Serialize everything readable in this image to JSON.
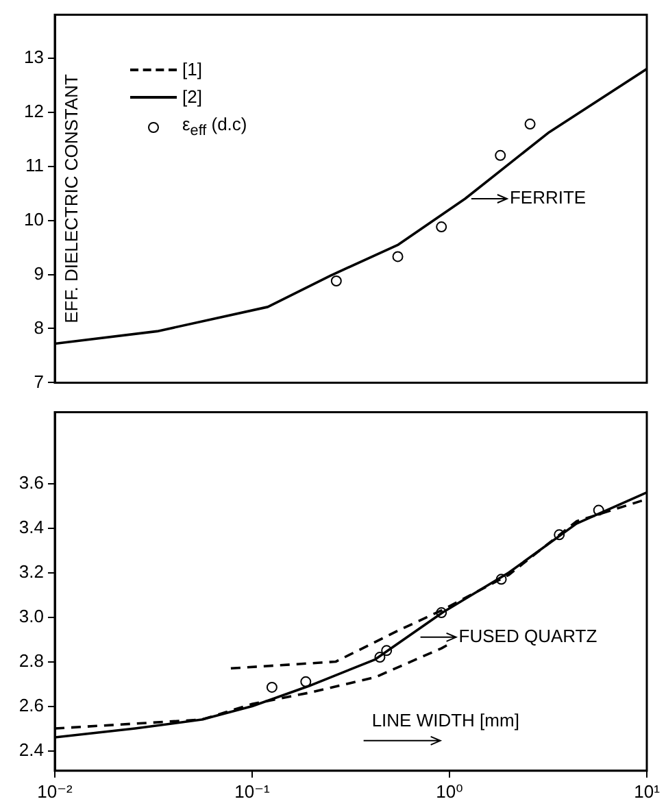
{
  "chart_data": [
    {
      "type": "line",
      "ylabel": "EFF. DIELECTRIC CONSTANT",
      "log": "x",
      "xlim": [
        0.01,
        10
      ],
      "ylim": [
        7,
        13.8
      ],
      "yticks": [
        7,
        8,
        9,
        10,
        11,
        12,
        13
      ],
      "tick_labels": "y",
      "legend": "top left",
      "annotations": [
        {
          "text": "FERRITE",
          "x": 1.25,
          "y": 10.4
        }
      ],
      "series": [
        {
          "name": "[1]",
          "line_style": "dashed",
          "marker": "none",
          "color": "#000000"
        },
        {
          "name": "[2]",
          "line_style": "solid",
          "marker": "none",
          "color": "#000000",
          "x": [
            0.01,
            0.033,
            0.12,
            0.25,
            0.55,
            1.2,
            3.2,
            10
          ],
          "values": [
            7.72,
            7.95,
            8.4,
            8.98,
            9.55,
            10.4,
            11.63,
            12.8
          ]
        },
        {
          "name": "ε$_{eff}$ (d.c)",
          "type": "scatter",
          "marker": "circle",
          "color": "#000000",
          "x": [
            0.267,
            0.547,
            0.91,
            1.81,
            2.56
          ],
          "values": [
            8.88,
            9.33,
            9.88,
            11.2,
            11.78
          ]
        }
      ]
    },
    {
      "type": "line",
      "xlabel": "LINE WIDTH [mm]",
      "log": "x",
      "xlim": [
        0.01,
        10
      ],
      "xticks": [
        {
          "value": 0.01,
          "label": "10⁻²"
        },
        {
          "value": 0.1,
          "label": "10⁻¹"
        },
        {
          "value": 1,
          "label": "10⁰"
        },
        {
          "value": 10,
          "label": "10¹"
        }
      ],
      "ylim": [
        2.31,
        3.92
      ],
      "yticks": [
        2.4,
        2.6,
        2.8,
        {
          "value": 3,
          "label": "3.0"
        },
        3.2,
        3.4,
        3.6
      ],
      "annotations": [
        {
          "text": "FUSED QUARTZ",
          "x": 0.69,
          "y": 2.91
        }
      ],
      "series": [
        {
          "line_style": "dashed",
          "marker": "none",
          "color": "#000000",
          "x": [
            0.078,
            0.265,
            0.55,
            0.91,
            2.0,
            4.4,
            10
          ],
          "values": [
            2.77,
            2.8,
            2.94,
            3.03,
            3.19,
            3.43,
            3.53
          ]
        },
        {
          "line_style": "dashed",
          "marker": "none",
          "color": "#000000",
          "x": [
            0.01,
            0.0556,
            0.1,
            0.193,
            0.42,
            0.91,
            1.0
          ],
          "values": [
            2.5,
            2.54,
            2.61,
            2.66,
            2.73,
            2.86,
            2.88
          ]
        },
        {
          "line_style": "solid",
          "marker": "none",
          "color": "#000000",
          "x": [
            0.01,
            0.0255,
            0.0556,
            0.1,
            0.193,
            0.42,
            0.92,
            2.0,
            4.4,
            10
          ],
          "values": [
            2.46,
            2.5,
            2.54,
            2.6,
            2.69,
            2.81,
            3.02,
            3.2,
            3.42,
            3.56
          ]
        },
        {
          "type": "scatter",
          "marker": "circle",
          "color": "#000000",
          "x": [
            0.126,
            0.187,
            0.444,
            0.48,
            0.91,
            1.83,
            3.6,
            5.7
          ],
          "values": [
            2.685,
            2.71,
            2.82,
            2.85,
            3.02,
            3.17,
            3.37,
            3.48
          ]
        }
      ]
    }
  ]
}
